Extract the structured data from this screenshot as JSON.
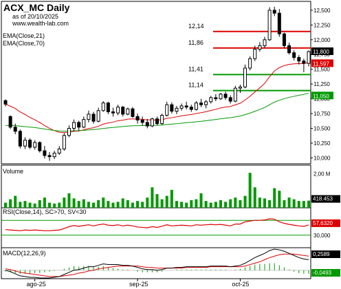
{
  "header": {
    "title": "ACX_MC Daily",
    "date": "as of 20/10/2025",
    "site": "www.wealth-lab.com"
  },
  "chart_data": {
    "type": "candlestick",
    "symbol": "ACX_MC",
    "x_labels": [
      "ago-25",
      "sep-25",
      "oct-25"
    ],
    "price_panel": {
      "legend": [
        "EMA(Close,21)",
        "EMA(Close,70)"
      ],
      "ylim": [
        9.9,
        12.65
      ],
      "y_ticks": [
        10.0,
        10.25,
        10.5,
        10.75,
        11.0,
        11.25,
        11.5,
        11.75,
        12.0,
        12.25,
        12.5
      ],
      "y_tick_labels": [
        "10,000",
        "10,250",
        "10,500",
        "10,750",
        "11,000",
        "11,250",
        "11,500",
        "11,750",
        "12,000",
        "12,250",
        "12,500"
      ],
      "levels": [
        {
          "value": 12.14,
          "label": "12,14",
          "color": "#dd0000"
        },
        {
          "value": 11.86,
          "label": "11,86",
          "color": "#dd0000"
        },
        {
          "value": 11.41,
          "label": "11,41",
          "color": "#009900"
        },
        {
          "value": 11.14,
          "label": "11,14",
          "color": "#009900"
        }
      ],
      "badges": [
        {
          "value": 11.8,
          "label": "11,800",
          "color": "#000000"
        },
        {
          "value": 11.597,
          "label": "11,597",
          "color": "#dd0000"
        },
        {
          "value": 11.05,
          "label": "11,050",
          "color": "#009900"
        }
      ],
      "ohlc": [
        [
          10.97,
          10.99,
          10.87,
          10.91
        ],
        [
          10.7,
          10.72,
          10.49,
          10.52
        ],
        [
          10.52,
          10.58,
          10.4,
          10.45
        ],
        [
          10.45,
          10.48,
          10.16,
          10.2
        ],
        [
          10.2,
          10.35,
          10.15,
          10.3
        ],
        [
          10.3,
          10.33,
          10.15,
          10.18
        ],
        [
          10.18,
          10.3,
          10.14,
          10.26
        ],
        [
          10.26,
          10.28,
          10.09,
          10.12
        ],
        [
          10.12,
          10.2,
          9.99,
          10.04
        ],
        [
          10.04,
          10.1,
          9.95,
          10.02
        ],
        [
          10.02,
          10.12,
          9.98,
          10.08
        ],
        [
          10.08,
          10.2,
          10.05,
          10.15
        ],
        [
          10.15,
          10.42,
          10.12,
          10.38
        ],
        [
          10.38,
          10.55,
          10.35,
          10.5
        ],
        [
          10.5,
          10.65,
          10.46,
          10.6
        ],
        [
          10.6,
          10.63,
          10.45,
          10.52
        ],
        [
          10.52,
          10.7,
          10.5,
          10.65
        ],
        [
          10.65,
          10.8,
          10.6,
          10.74
        ],
        [
          10.74,
          10.78,
          10.58,
          10.62
        ],
        [
          10.62,
          10.85,
          10.6,
          10.8
        ],
        [
          10.8,
          10.96,
          10.78,
          10.93
        ],
        [
          10.93,
          10.95,
          10.74,
          10.78
        ],
        [
          10.78,
          10.85,
          10.7,
          10.76
        ],
        [
          10.76,
          10.9,
          10.72,
          10.86
        ],
        [
          10.86,
          10.88,
          10.7,
          10.74
        ],
        [
          10.74,
          10.85,
          10.72,
          10.83
        ],
        [
          10.83,
          10.86,
          10.68,
          10.7
        ],
        [
          10.7,
          10.75,
          10.58,
          10.64
        ],
        [
          10.64,
          10.7,
          10.55,
          10.6
        ],
        [
          10.6,
          10.66,
          10.5,
          10.54
        ],
        [
          10.54,
          10.68,
          10.52,
          10.66
        ],
        [
          10.66,
          10.7,
          10.55,
          10.58
        ],
        [
          10.58,
          10.75,
          10.56,
          10.72
        ],
        [
          10.72,
          10.95,
          10.7,
          10.9
        ],
        [
          10.9,
          10.94,
          10.75,
          10.79
        ],
        [
          10.79,
          10.88,
          10.74,
          10.84
        ],
        [
          10.84,
          10.92,
          10.8,
          10.88
        ],
        [
          10.88,
          10.95,
          10.82,
          10.86
        ],
        [
          10.86,
          10.9,
          10.78,
          10.82
        ],
        [
          10.82,
          10.96,
          10.8,
          10.93
        ],
        [
          10.93,
          11.0,
          10.86,
          10.9
        ],
        [
          10.9,
          10.98,
          10.84,
          10.95
        ],
        [
          10.95,
          11.05,
          10.92,
          11.02
        ],
        [
          11.02,
          11.08,
          10.96,
          11.0
        ],
        [
          11.0,
          11.1,
          10.98,
          11.08
        ],
        [
          11.08,
          11.12,
          10.98,
          11.02
        ],
        [
          11.02,
          11.06,
          10.92,
          10.96
        ],
        [
          10.96,
          11.22,
          10.94,
          11.18
        ],
        [
          11.18,
          11.24,
          11.1,
          11.2
        ],
        [
          11.2,
          11.58,
          11.18,
          11.52
        ],
        [
          11.52,
          11.72,
          11.48,
          11.68
        ],
        [
          11.68,
          11.9,
          11.64,
          11.84
        ],
        [
          11.84,
          11.96,
          11.8,
          11.9
        ],
        [
          11.9,
          12.05,
          11.86,
          12.0
        ],
        [
          12.0,
          12.55,
          11.98,
          12.5
        ],
        [
          12.5,
          12.56,
          12.4,
          12.45
        ],
        [
          12.45,
          12.52,
          12.05,
          12.1
        ],
        [
          12.1,
          12.12,
          11.86,
          11.9
        ],
        [
          11.9,
          11.95,
          11.75,
          11.78
        ],
        [
          11.78,
          11.82,
          11.65,
          11.7
        ],
        [
          11.7,
          11.74,
          11.58,
          11.64
        ],
        [
          11.64,
          11.68,
          11.45,
          11.6
        ],
        [
          11.6,
          11.82,
          11.55,
          11.8
        ]
      ]
    },
    "volume_panel": {
      "label": "Volume",
      "ylim": [
        0,
        2.5
      ],
      "tick_labels": [
        "2,00 M"
      ],
      "last_label": "418.453",
      "color": "#009900",
      "values": [
        0.3,
        0.5,
        0.7,
        0.35,
        0.4,
        0.3,
        0.25,
        0.45,
        0.6,
        0.3,
        0.25,
        0.3,
        0.6,
        0.85,
        0.55,
        0.4,
        0.5,
        0.35,
        0.3,
        0.45,
        0.6,
        0.4,
        0.3,
        0.35,
        0.55,
        0.45,
        0.3,
        0.4,
        0.35,
        0.6,
        1.2,
        0.8,
        0.5,
        0.7,
        1.05,
        0.4,
        0.35,
        0.3,
        0.45,
        0.5,
        0.85,
        0.4,
        0.3,
        0.35,
        0.45,
        0.35,
        0.5,
        0.6,
        0.45,
        0.7,
        2.05,
        1.2,
        0.6,
        0.55,
        0.45,
        1.15,
        1.0,
        0.45,
        0.6,
        0.5,
        0.4,
        0.4,
        0.42
      ]
    },
    "rsi_panel": {
      "label": "RSI(Close,14), SC>70, SV<30",
      "ylim": [
        0,
        100
      ],
      "overbought": 70,
      "oversold": 30,
      "tick_labels": [
        "30,000"
      ],
      "last_label": "57,6320",
      "values": [
        45,
        44,
        43,
        42,
        44,
        43,
        44,
        43,
        42,
        42,
        43,
        44,
        48,
        53,
        56,
        54,
        56,
        58,
        55,
        58,
        60,
        57,
        56,
        58,
        55,
        57,
        55,
        52,
        51,
        50,
        53,
        51,
        54,
        58,
        55,
        56,
        57,
        56,
        55,
        58,
        57,
        58,
        59,
        58,
        59,
        57,
        55,
        60,
        60,
        66,
        68,
        70,
        70,
        71,
        74,
        73,
        66,
        62,
        59,
        57,
        55,
        54,
        57.6
      ]
    },
    "macd_panel": {
      "label": "MACD(12,26,9)",
      "ylim": [
        -0.12,
        0.32
      ],
      "top_label": "0,2589",
      "bottom_label": "-0,0493",
      "macd": [
        0.0,
        -0.02,
        -0.05,
        -0.08,
        -0.09,
        -0.1,
        -0.1,
        -0.11,
        -0.11,
        -0.11,
        -0.1,
        -0.09,
        -0.06,
        -0.03,
        0.0,
        0.01,
        0.03,
        0.05,
        0.05,
        0.07,
        0.09,
        0.08,
        0.08,
        0.08,
        0.07,
        0.07,
        0.06,
        0.04,
        0.02,
        0.01,
        0.01,
        0.0,
        0.01,
        0.03,
        0.03,
        0.04,
        0.04,
        0.05,
        0.05,
        0.05,
        0.05,
        0.05,
        0.06,
        0.06,
        0.06,
        0.06,
        0.05,
        0.06,
        0.07,
        0.1,
        0.14,
        0.18,
        0.21,
        0.24,
        0.28,
        0.3,
        0.29,
        0.27,
        0.24,
        0.21,
        0.18,
        0.16,
        0.15
      ],
      "signal": [
        0.02,
        0.01,
        -0.01,
        -0.03,
        -0.04,
        -0.05,
        -0.06,
        -0.07,
        -0.08,
        -0.09,
        -0.09,
        -0.09,
        -0.08,
        -0.07,
        -0.06,
        -0.04,
        -0.03,
        -0.01,
        0.0,
        0.02,
        0.03,
        0.04,
        0.05,
        0.06,
        0.06,
        0.06,
        0.06,
        0.06,
        0.05,
        0.04,
        0.04,
        0.03,
        0.03,
        0.03,
        0.03,
        0.03,
        0.03,
        0.04,
        0.04,
        0.04,
        0.04,
        0.04,
        0.05,
        0.05,
        0.05,
        0.05,
        0.05,
        0.05,
        0.05,
        0.06,
        0.08,
        0.1,
        0.12,
        0.15,
        0.18,
        0.2,
        0.22,
        0.23,
        0.23,
        0.23,
        0.22,
        0.21,
        0.2
      ]
    }
  }
}
